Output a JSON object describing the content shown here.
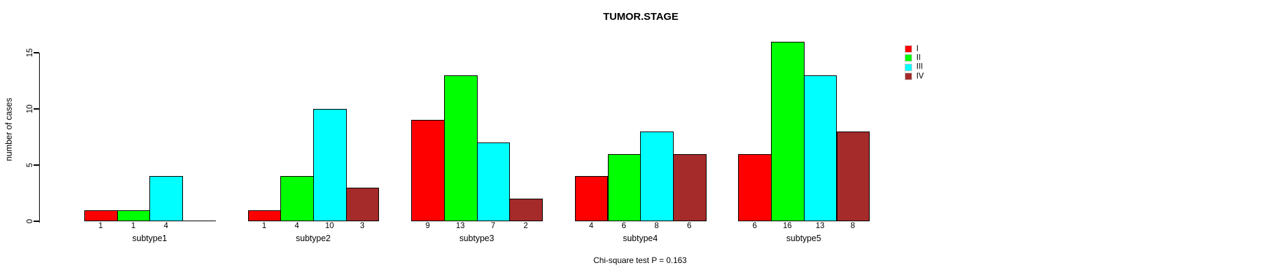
{
  "title": "TUMOR.STAGE",
  "annotation": "Chi-square test P = 0.163",
  "ylabel": "number of cases",
  "chart_data": {
    "type": "bar",
    "grouped": true,
    "title": "TUMOR.STAGE",
    "xlabel": "",
    "ylabel": "number of cases",
    "ylim": [
      0,
      15
    ],
    "yticks": [
      0,
      5,
      10,
      15
    ],
    "grid": false,
    "legend_position": "top-right",
    "bar_value_labels": true,
    "hide_zero_value_labels": true,
    "annotation": "Chi-square test P = 0.163",
    "categories": [
      "subtype1",
      "subtype2",
      "subtype3",
      "subtype4",
      "subtype5"
    ],
    "series": [
      {
        "name": "I",
        "color": "#ff0000",
        "values": [
          1,
          1,
          9,
          4,
          6
        ]
      },
      {
        "name": "II",
        "color": "#00ff00",
        "values": [
          1,
          4,
          13,
          6,
          16
        ]
      },
      {
        "name": "III",
        "color": "#00ffff",
        "values": [
          4,
          10,
          7,
          8,
          13
        ]
      },
      {
        "name": "IV",
        "color": "#a52a2a",
        "values": [
          0,
          3,
          2,
          6,
          8
        ]
      }
    ],
    "legend": {
      "items": [
        "I",
        "II",
        "III",
        "IV"
      ]
    },
    "colors": {
      "bar_border": "#000000",
      "axis": "#000000",
      "background": "#ffffff"
    }
  }
}
